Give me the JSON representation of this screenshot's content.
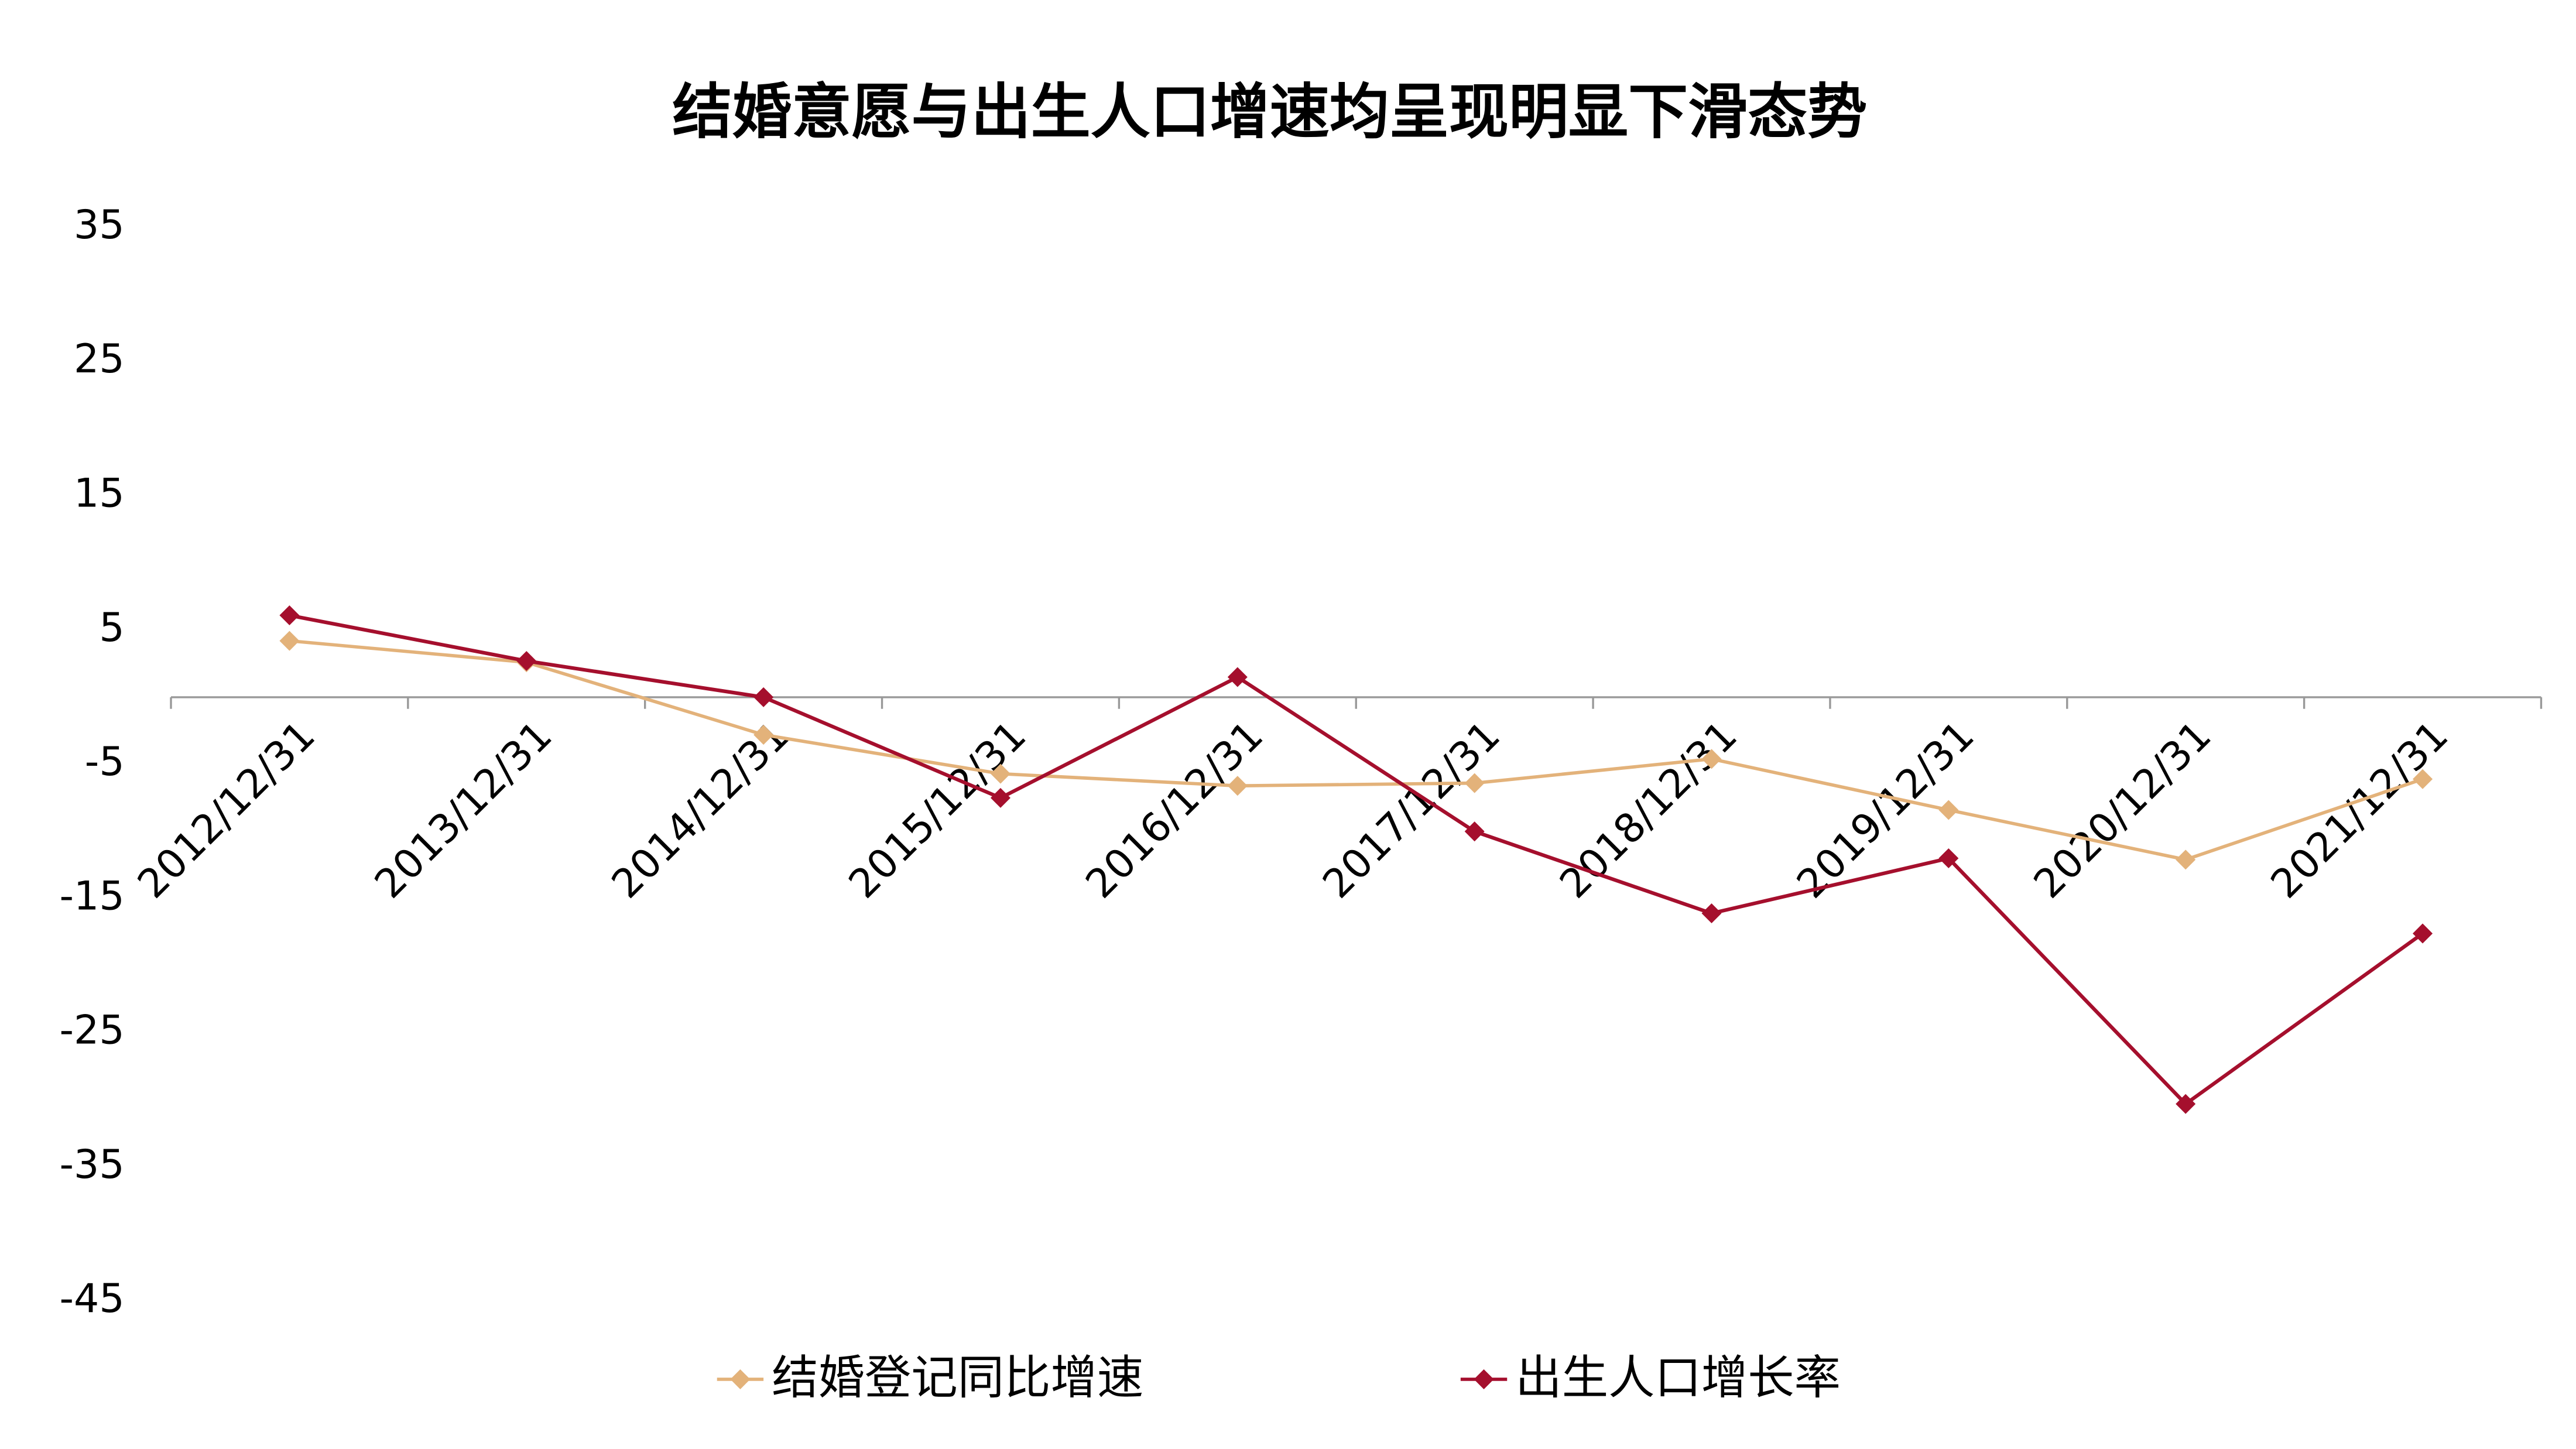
{
  "chart_data": {
    "type": "line",
    "title": "结婚意愿与出生人口增速均呈现明显下滑态势",
    "categories": [
      "2012/12/31",
      "2013/12/31",
      "2014/12/31",
      "2015/12/31",
      "2016/12/31",
      "2017/12/31",
      "2018/12/31",
      "2019/12/31",
      "2020/12/31",
      "2021/12/31"
    ],
    "series": [
      {
        "name": "结婚登记同比增速",
        "color": "#e3b27a",
        "values": [
          4.2,
          2.6,
          -2.8,
          -5.7,
          -6.6,
          -6.4,
          -4.6,
          -8.4,
          -12.1,
          -6.1
        ]
      },
      {
        "name": "出生人口增长率",
        "color": "#a50f2d",
        "values": [
          6.1,
          2.7,
          0,
          -7.5,
          1.5,
          -10.0,
          -16.1,
          -12.0,
          -30.3,
          -17.6
        ]
      }
    ],
    "ylim": [
      -45,
      35
    ],
    "yticks": [
      -45,
      -35,
      -25,
      -15,
      -5,
      5,
      15,
      25,
      35
    ],
    "grid": false,
    "legend": "bottom"
  }
}
